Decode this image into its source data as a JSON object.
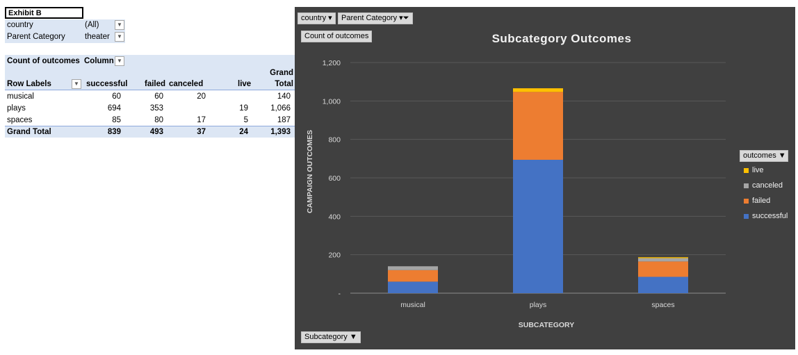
{
  "pivot": {
    "exhibit_label": "Exhibit B",
    "filters": [
      {
        "label": "country",
        "value": "(All)"
      },
      {
        "label": "Parent Category",
        "value": "theater"
      }
    ],
    "values_label": "Count of outcomes",
    "columns_label": "Column",
    "row_labels_header": "Row Labels",
    "column_headers": [
      "successful",
      "failed",
      "canceled",
      "live",
      "Grand",
      "Total"
    ],
    "rows": [
      {
        "label": "musical",
        "successful": "60",
        "failed": "60",
        "canceled": "20",
        "live": "",
        "total": "140"
      },
      {
        "label": "plays",
        "successful": "694",
        "failed": "353",
        "canceled": "",
        "live": "19",
        "total": "1,066"
      },
      {
        "label": "spaces",
        "successful": "85",
        "failed": "80",
        "canceled": "17",
        "live": "5",
        "total": "187"
      }
    ],
    "grand_total": {
      "label": "Grand Total",
      "successful": "839",
      "failed": "493",
      "canceled": "37",
      "live": "24",
      "total": "1,393"
    }
  },
  "chart_buttons": {
    "country": "country",
    "parent_category": "Parent Category",
    "values": "Count of outcomes",
    "axis_field": "Subcategory",
    "legend_field": "outcomes"
  },
  "chart_data": {
    "type": "bar",
    "stacked": true,
    "title": "Subcategory Outcomes",
    "xlabel": "SUBCATEGORY",
    "ylabel": "CAMPAIGN OUTCOMES",
    "categories": [
      "musical",
      "plays",
      "spaces"
    ],
    "ylim": [
      0,
      1200
    ],
    "yticks": [
      0,
      200,
      400,
      600,
      800,
      1000,
      1200
    ],
    "ytick_labels": [
      "-",
      "200",
      "400",
      "600",
      "800",
      "1,000",
      "1,200"
    ],
    "grid": true,
    "legend_position": "right",
    "series": [
      {
        "name": "successful",
        "color": "#4472c4",
        "values": [
          60,
          694,
          85
        ]
      },
      {
        "name": "failed",
        "color": "#ed7d31",
        "values": [
          60,
          353,
          80
        ]
      },
      {
        "name": "canceled",
        "color": "#a5a5a5",
        "values": [
          20,
          0,
          17
        ]
      },
      {
        "name": "live",
        "color": "#ffc000",
        "values": [
          0,
          19,
          5
        ]
      }
    ]
  }
}
